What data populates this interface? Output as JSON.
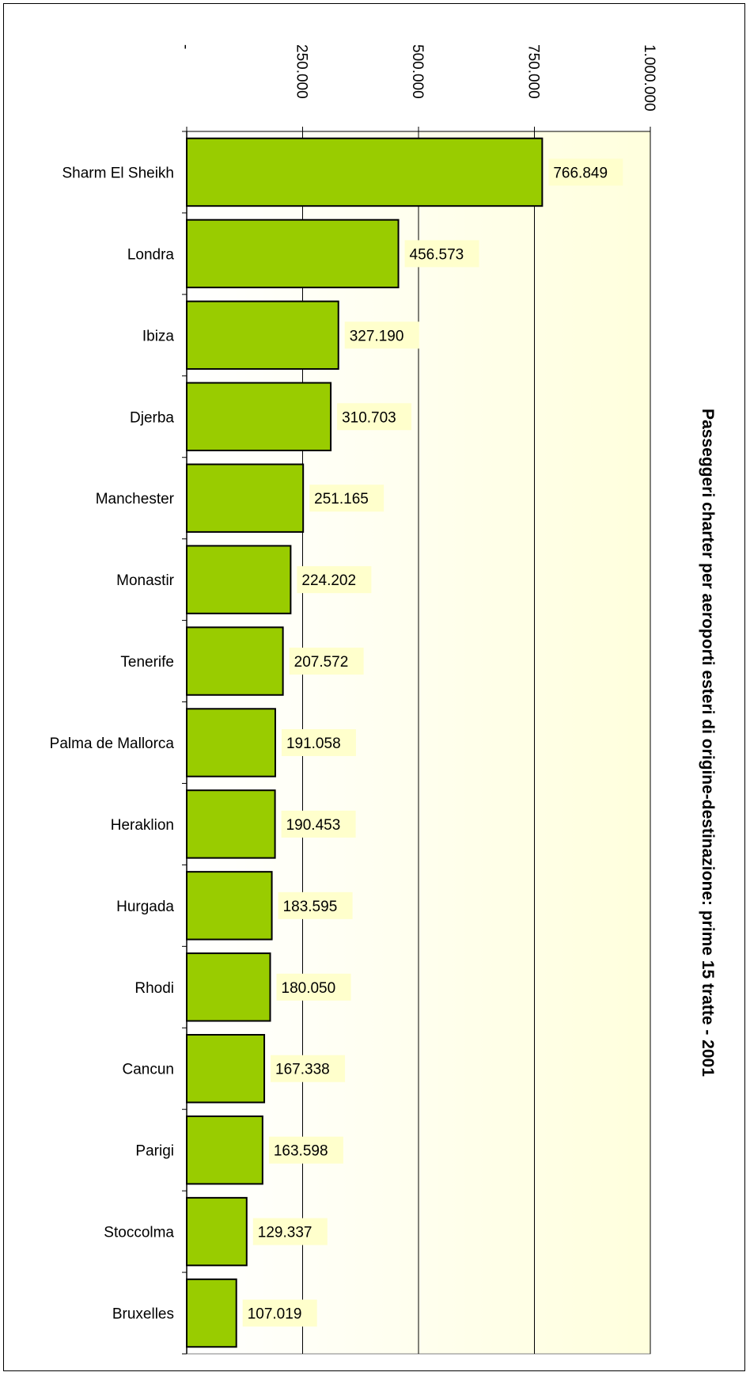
{
  "chart_data": {
    "type": "bar",
    "orientation": "horizontal",
    "title": "Passeggeri charter per aeroporti esteri di origine-destinazione: prime 15 tratte - 2001",
    "xlabel": "",
    "ylabel": "",
    "xlim": [
      0,
      1000000
    ],
    "tick_values": [
      0,
      250000,
      500000,
      750000,
      1000000
    ],
    "tick_labels": [
      "-",
      "250.000",
      "500.000",
      "750.000",
      "1.000.000"
    ],
    "categories": [
      "Sharm El Sheikh",
      "Londra",
      "Ibiza",
      "Djerba",
      "Manchester",
      "Monastir",
      "Tenerife",
      "Palma de Mallorca",
      "Heraklion",
      "Hurgada",
      "Rhodi",
      "Cancun",
      "Parigi",
      "Stoccolma",
      "Bruxelles"
    ],
    "values": [
      766849,
      456573,
      327190,
      310703,
      251165,
      224202,
      207572,
      191058,
      190453,
      183595,
      180050,
      167338,
      163598,
      129337,
      107019
    ],
    "value_labels": [
      "766.849",
      "456.573",
      "327.190",
      "310.703",
      "251.165",
      "224.202",
      "207.572",
      "191.058",
      "190.453",
      "183.595",
      "180.050",
      "167.338",
      "163.598",
      "129.337",
      "107.019"
    ],
    "grid": true,
    "legend": "none",
    "colors": {
      "bar_fill": "#99cc00",
      "bar_stroke": "#000000",
      "plot_bg_start": "#ffffff",
      "plot_bg_end": "#ffffdd",
      "label_bg": "#ffffcc",
      "grid": "#000000"
    }
  }
}
